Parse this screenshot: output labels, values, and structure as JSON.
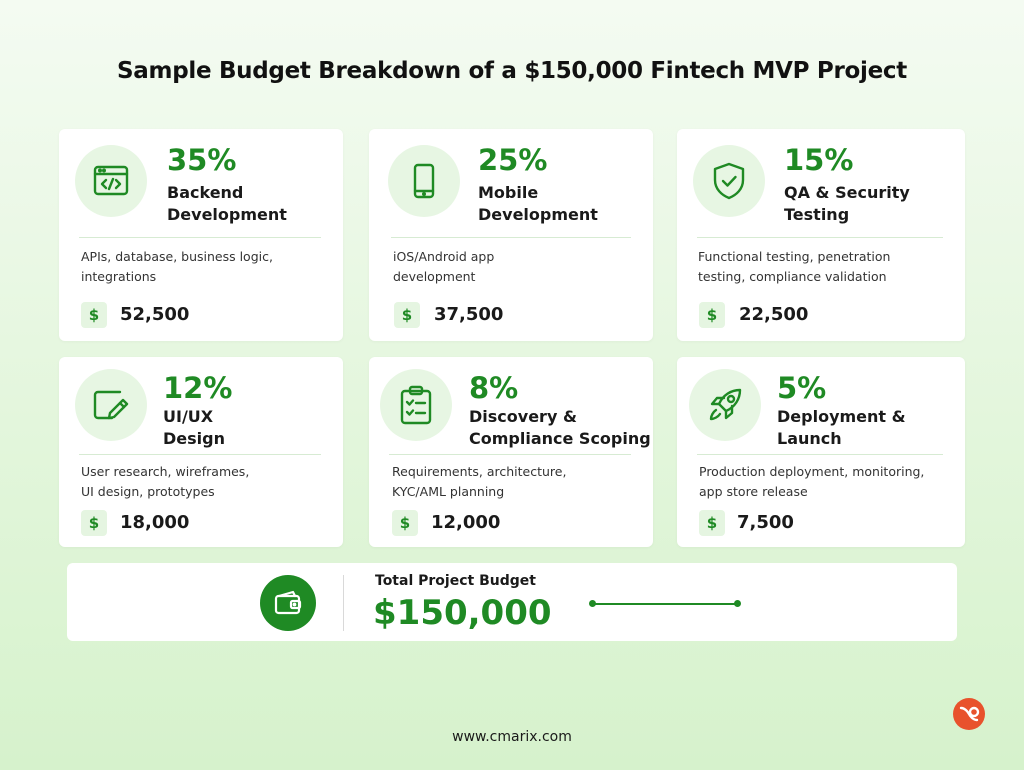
{
  "title": "Sample Budget Breakdown of a $150,000 Fintech MVP Project",
  "currency_symbol": "$",
  "accent_color": "#1f8a24",
  "cards": [
    {
      "icon": "code-window-icon",
      "percent": "35%",
      "label": "Backend\nDevelopment",
      "description": "APIs, database, business logic,\nintegrations",
      "amount": "52,500"
    },
    {
      "icon": "mobile-phone-icon",
      "percent": "25%",
      "label": "Mobile\nDevelopment",
      "description": "iOS/Android app\ndevelopment",
      "amount": "37,500"
    },
    {
      "icon": "shield-check-icon",
      "percent": "15%",
      "label": "QA & Security\nTesting",
      "description": "Functional testing, penetration\ntesting, compliance validation",
      "amount": "22,500"
    },
    {
      "icon": "design-pencil-icon",
      "percent": "12%",
      "label": "UI/UX\nDesign",
      "description": "User research, wireframes,\nUI design, prototypes",
      "amount": "18,000"
    },
    {
      "icon": "clipboard-checklist-icon",
      "percent": "8%",
      "label": "Discovery &\nCompliance Scoping",
      "description": "Requirements, architecture,\nKYC/AML planning",
      "amount": "12,000"
    },
    {
      "icon": "rocket-icon",
      "percent": "5%",
      "label": "Deployment &\nLaunch",
      "description": "Production deployment, monitoring,\napp store release",
      "amount": "7,500"
    }
  ],
  "total": {
    "icon": "wallet-icon",
    "label": "Total Project Budget",
    "value": "$150,000"
  },
  "footer": {
    "website": "www.cmarix.com",
    "logo_icon": "cmarix-logo-icon"
  }
}
